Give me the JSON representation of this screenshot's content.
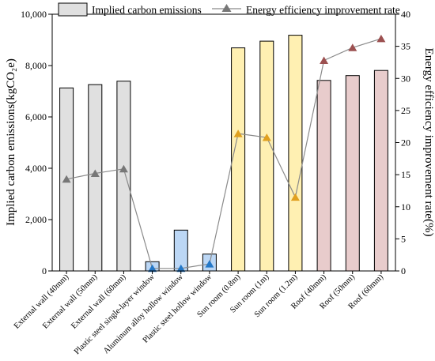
{
  "chart_data": {
    "type": "bar",
    "categories": [
      "External wall (40mm)",
      "External wall (50mm)",
      "External wall (60mm)",
      "Plastic steel single-layer window",
      "Aluminum alloy hollow window",
      "Plastic steel hollow window",
      "Sun room (0.8m)",
      "Sun room (1m)",
      "Sun room (1.2m)",
      "Roof (40mm)",
      "Roof (50mm)",
      "Roof (60mm)"
    ],
    "series": [
      {
        "name": "Implied carbon emissions",
        "type": "bar",
        "axis": "left",
        "values": [
          7130,
          7260,
          7390,
          360,
          1590,
          660,
          8690,
          8950,
          9180,
          7420,
          7610,
          7810
        ]
      },
      {
        "name": "Energy efficiency improvement rate",
        "type": "line",
        "axis": "right",
        "values": [
          14.3,
          15.2,
          15.9,
          0.4,
          0.4,
          1.1,
          21.4,
          20.8,
          11.5,
          32.8,
          34.8,
          36.2
        ]
      }
    ],
    "bar_group_colors": [
      "#e0e0e0",
      "#e0e0e0",
      "#e0e0e0",
      "#bcd7f5",
      "#bcd7f5",
      "#bcd7f5",
      "#fff0b2",
      "#fff0b2",
      "#fff0b2",
      "#e8cccc",
      "#e8cccc",
      "#e8cccc"
    ],
    "marker_colors": [
      "#777777",
      "#777777",
      "#777777",
      "#2478c8",
      "#2478c8",
      "#2478c8",
      "#e0a020",
      "#e0a020",
      "#e0a020",
      "#9c5050",
      "#9c5050",
      "#9c5050"
    ],
    "line_color": "#8a8a8a",
    "ylabel_left": "Implied carbon emissions(kgCO₂e)",
    "ylabel_right": "Energy efficiency improvement rate(%)",
    "ylim_left": [
      0,
      10000
    ],
    "ylim_right": [
      0,
      40
    ],
    "yticks_left": [
      "0",
      "2,000",
      "4,000",
      "6,000",
      "8,000",
      "10,000"
    ],
    "yticks_right": [
      "0",
      "5",
      "10",
      "15",
      "20",
      "25",
      "30",
      "35",
      "40"
    ],
    "legend_position": "top",
    "grid": false
  }
}
